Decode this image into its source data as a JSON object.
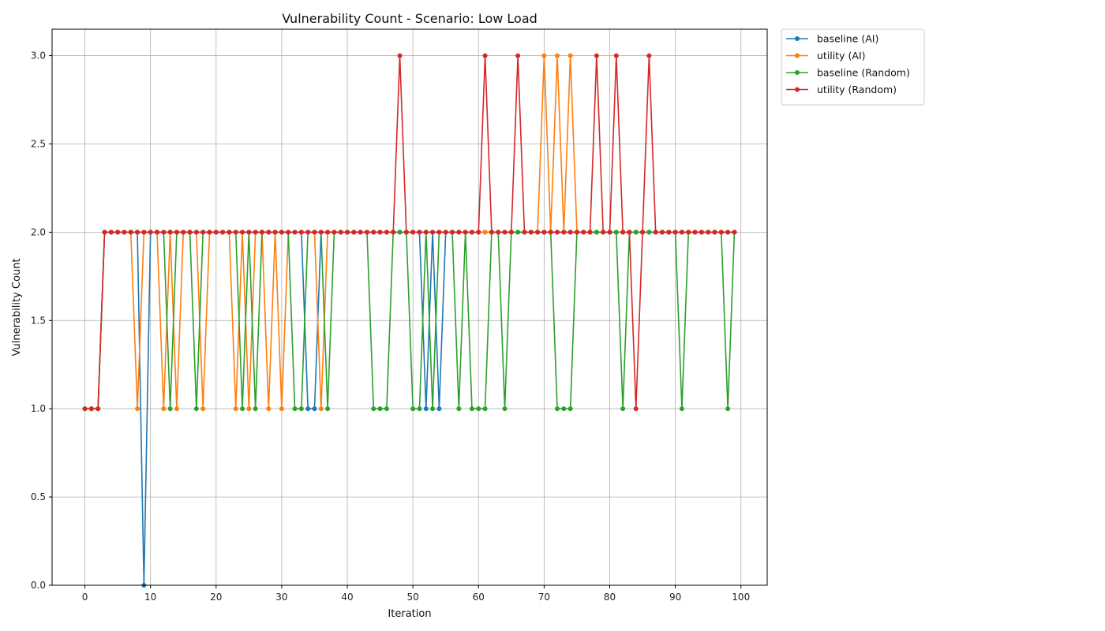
{
  "chart_data": {
    "type": "line",
    "title": "Vulnerability Count - Scenario: Low Load",
    "xlabel": "Iteration",
    "ylabel": "Vulnerability Count",
    "xlim": [
      -5,
      104
    ],
    "ylim": [
      0,
      3.15
    ],
    "xticks": [
      0,
      10,
      20,
      30,
      40,
      50,
      60,
      70,
      80,
      90,
      100
    ],
    "yticks": [
      0.0,
      0.5,
      1.0,
      1.5,
      2.0,
      2.5,
      3.0
    ],
    "xtick_labels": [
      "0",
      "10",
      "20",
      "30",
      "40",
      "50",
      "60",
      "70",
      "80",
      "90",
      "100"
    ],
    "ytick_labels": [
      "0.0",
      "0.5",
      "1.0",
      "1.5",
      "2.0",
      "2.5",
      "3.0"
    ],
    "grid": true,
    "legend_position": "outside-top-right",
    "marker": "circle",
    "series": [
      {
        "name": "baseline (AI)",
        "color": "#1f77b4",
        "values": [
          1,
          1,
          1,
          2,
          2,
          2,
          2,
          2,
          2,
          0,
          2,
          2,
          2,
          2,
          2,
          2,
          2,
          2,
          2,
          2,
          2,
          2,
          2,
          2,
          2,
          2,
          2,
          2,
          2,
          2,
          2,
          2,
          2,
          2,
          1,
          1,
          2,
          2,
          2,
          2,
          2,
          2,
          2,
          2,
          2,
          2,
          2,
          2,
          2,
          2,
          2,
          2,
          1,
          2,
          1,
          2,
          2,
          2,
          2,
          2,
          2,
          2,
          2,
          2,
          2,
          2,
          2,
          2,
          2,
          2,
          2,
          2,
          2,
          2,
          2,
          2,
          2,
          2,
          2,
          2,
          2,
          2,
          2,
          2,
          2,
          2,
          2,
          2,
          2,
          2,
          2,
          2,
          2,
          2,
          2,
          2,
          2,
          2,
          2,
          2
        ]
      },
      {
        "name": "utility (AI)",
        "color": "#ff7f0e",
        "values": [
          1,
          1,
          1,
          2,
          2,
          2,
          2,
          2,
          1,
          2,
          2,
          2,
          1,
          2,
          1,
          2,
          2,
          2,
          1,
          2,
          2,
          2,
          2,
          1,
          2,
          1,
          2,
          2,
          1,
          2,
          1,
          2,
          2,
          2,
          2,
          2,
          1,
          2,
          2,
          2,
          2,
          2,
          2,
          2,
          2,
          2,
          2,
          2,
          2,
          2,
          2,
          2,
          2,
          2,
          2,
          2,
          2,
          2,
          2,
          2,
          2,
          2,
          2,
          2,
          2,
          2,
          2,
          2,
          2,
          2,
          3,
          2,
          3,
          2,
          3,
          2,
          2,
          2,
          2,
          2,
          2,
          2,
          2,
          2,
          2,
          2,
          2,
          2,
          2,
          2,
          2,
          2,
          2,
          2,
          2,
          2,
          2,
          2,
          2,
          2
        ]
      },
      {
        "name": "baseline (Random)",
        "color": "#2ca02c",
        "values": [
          1,
          1,
          1,
          2,
          2,
          2,
          2,
          2,
          2,
          2,
          2,
          2,
          2,
          1,
          2,
          2,
          2,
          1,
          2,
          2,
          2,
          2,
          2,
          2,
          1,
          2,
          1,
          2,
          2,
          2,
          2,
          2,
          1,
          1,
          2,
          2,
          2,
          1,
          2,
          2,
          2,
          2,
          2,
          2,
          1,
          1,
          1,
          2,
          2,
          2,
          1,
          1,
          2,
          1,
          2,
          2,
          2,
          1,
          2,
          1,
          1,
          1,
          2,
          2,
          1,
          2,
          2,
          2,
          2,
          2,
          2,
          2,
          1,
          1,
          1,
          2,
          2,
          2,
          2,
          2,
          2,
          2,
          1,
          2,
          2,
          2,
          2,
          2,
          2,
          2,
          2,
          1,
          2,
          2,
          2,
          2,
          2,
          2,
          1,
          2
        ]
      },
      {
        "name": "utility (Random)",
        "color": "#d62728",
        "values": [
          1,
          1,
          1,
          2,
          2,
          2,
          2,
          2,
          2,
          2,
          2,
          2,
          2,
          2,
          2,
          2,
          2,
          2,
          2,
          2,
          2,
          2,
          2,
          2,
          2,
          2,
          2,
          2,
          2,
          2,
          2,
          2,
          2,
          2,
          2,
          2,
          2,
          2,
          2,
          2,
          2,
          2,
          2,
          2,
          2,
          2,
          2,
          2,
          3,
          2,
          2,
          2,
          2,
          2,
          2,
          2,
          2,
          2,
          2,
          2,
          2,
          3,
          2,
          2,
          2,
          2,
          3,
          2,
          2,
          2,
          2,
          2,
          2,
          2,
          2,
          2,
          2,
          2,
          3,
          2,
          2,
          3,
          2,
          2,
          1,
          2,
          3,
          2,
          2,
          2,
          2,
          2,
          2,
          2,
          2,
          2,
          2,
          2,
          2,
          2
        ]
      }
    ]
  }
}
